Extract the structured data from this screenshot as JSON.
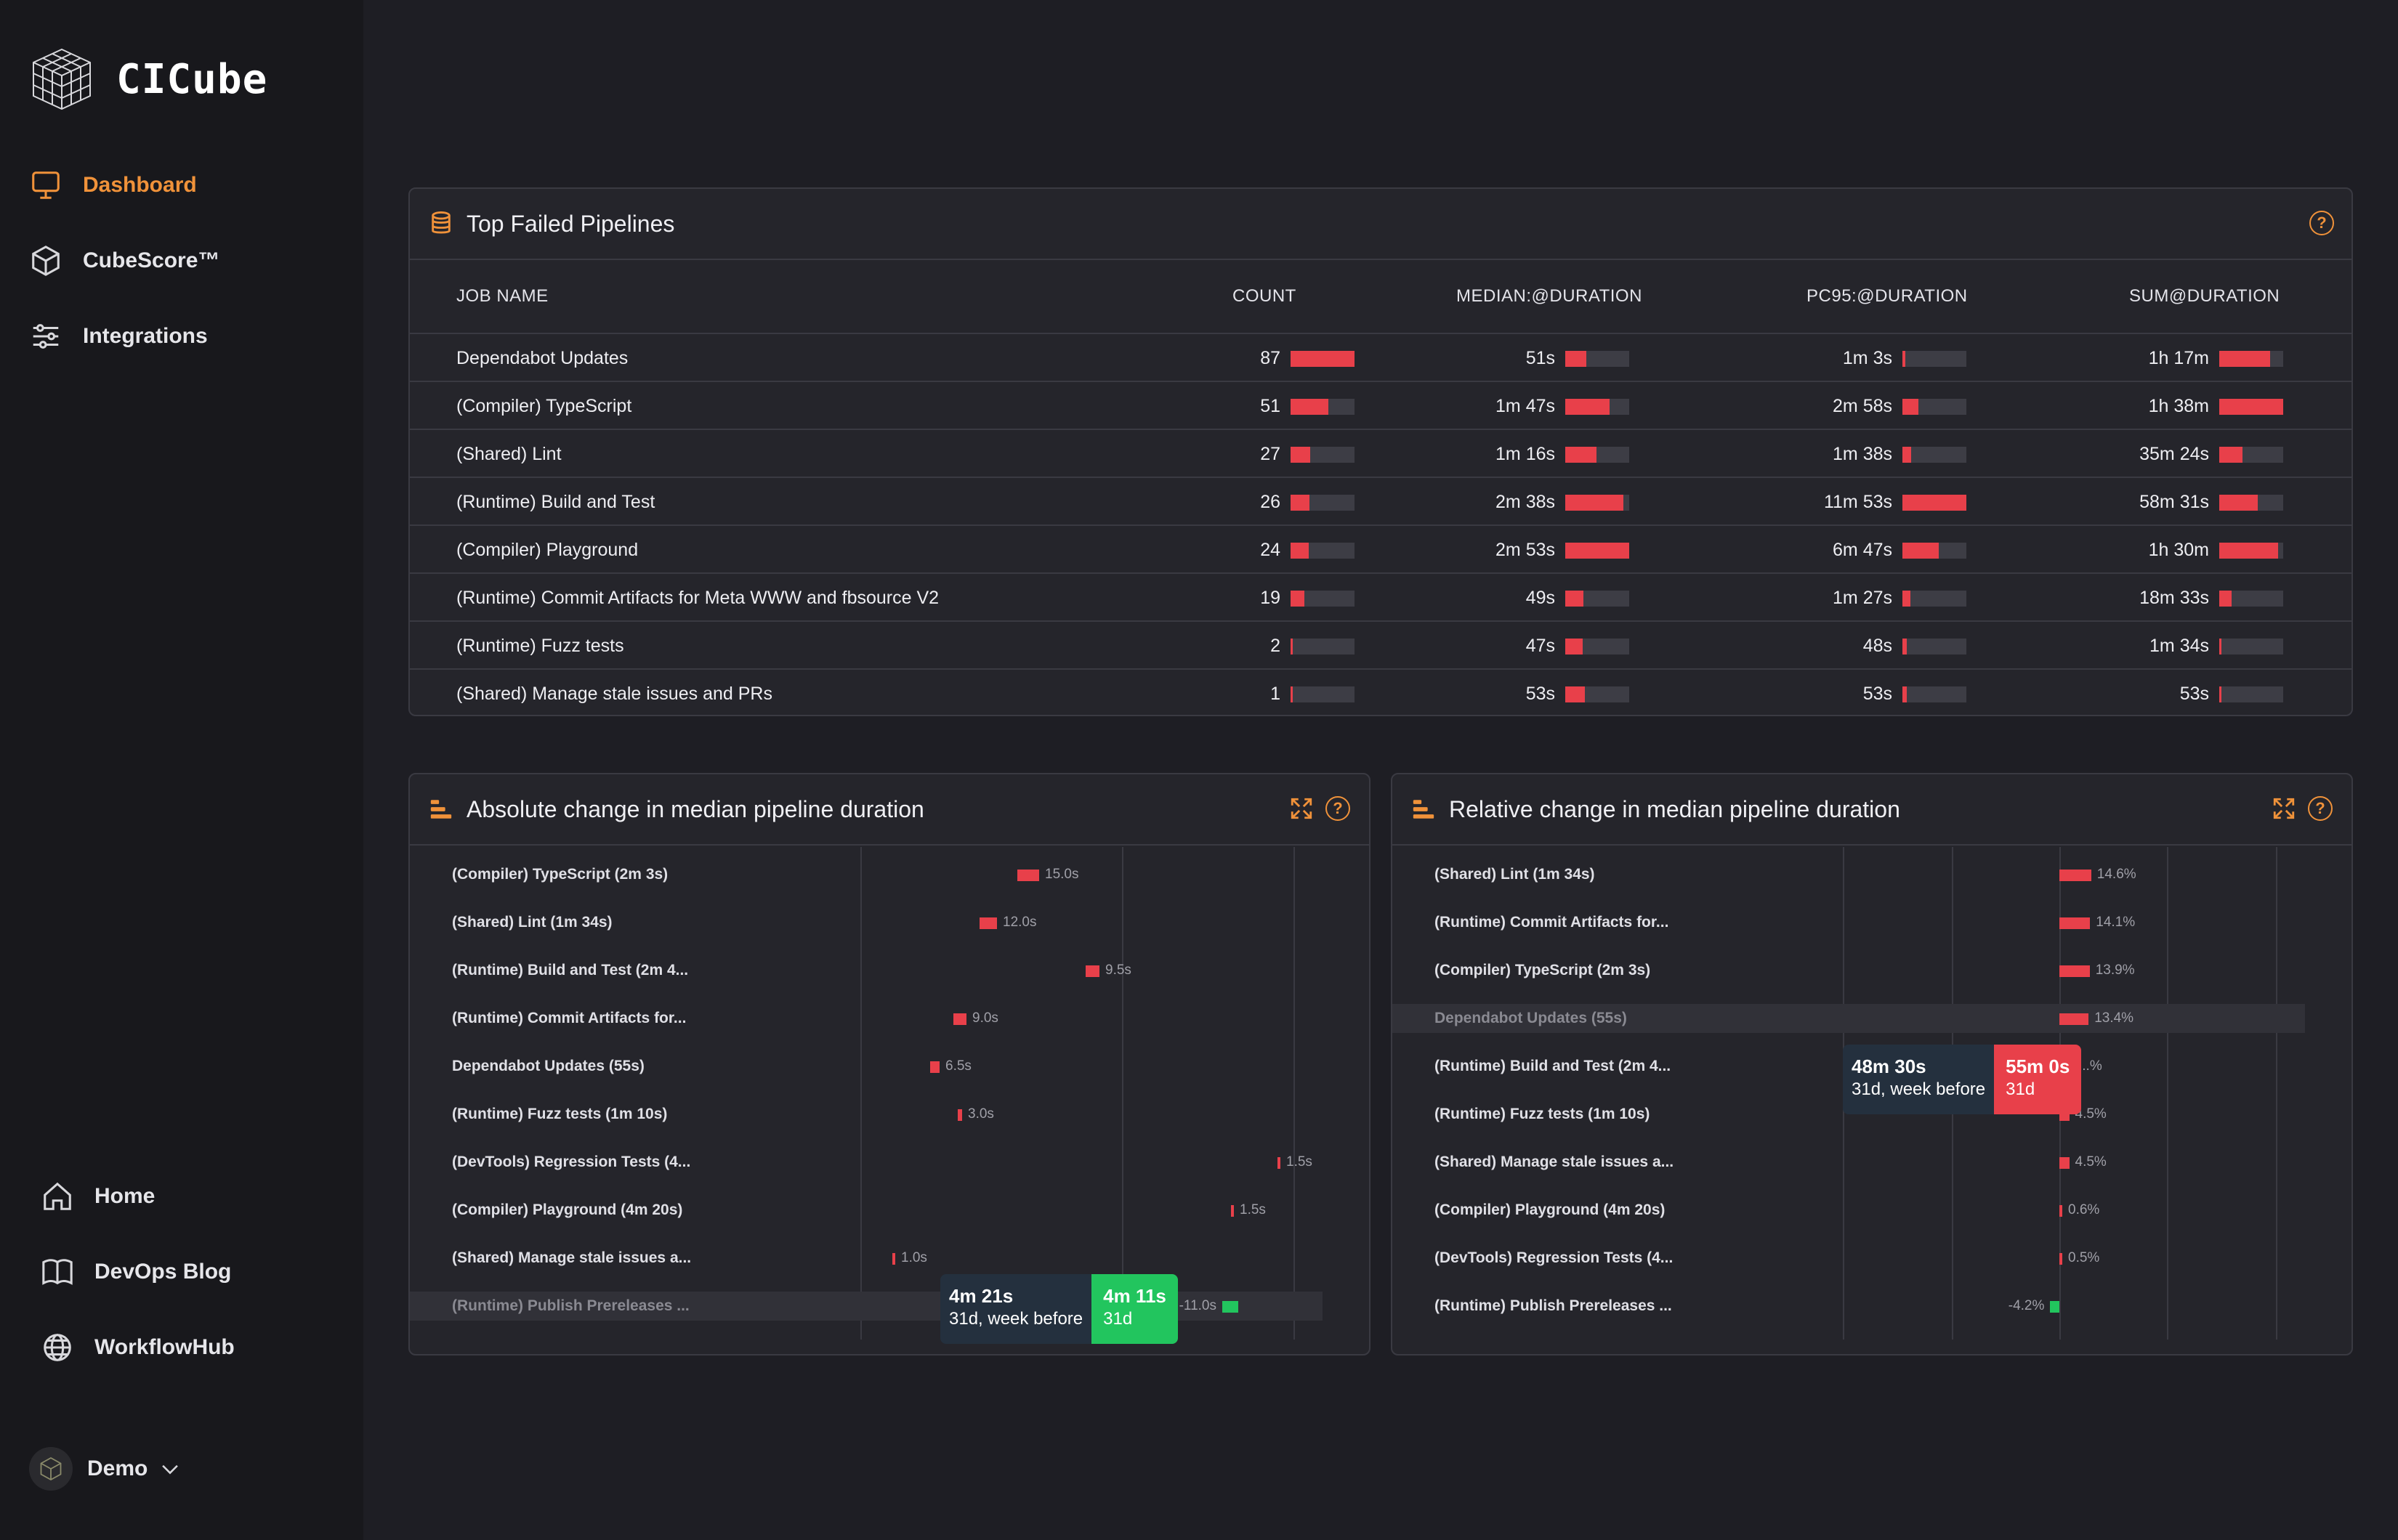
{
  "app": {
    "name": "CICube"
  },
  "nav": {
    "primary": [
      {
        "label": "Dashboard",
        "icon": "monitor-icon",
        "active": true
      },
      {
        "label": "CubeScore™",
        "icon": "cube-icon",
        "active": false
      },
      {
        "label": "Integrations",
        "icon": "sliders-icon",
        "active": false
      }
    ],
    "secondary": [
      {
        "label": "Home",
        "icon": "home-icon"
      },
      {
        "label": "DevOps Blog",
        "icon": "book-icon"
      },
      {
        "label": "WorkflowHub",
        "icon": "globe-icon"
      }
    ],
    "account": {
      "label": "Demo"
    }
  },
  "colors": {
    "accent": "#f0923a",
    "bad": "#e8404a",
    "good": "#22c55e"
  },
  "failed": {
    "title": "Top Failed Pipelines",
    "columns": [
      "JOB NAME",
      "COUNT",
      "MEDIAN:@DURATION",
      "PC95:@DURATION",
      "SUM@DURATION"
    ],
    "rows": [
      {
        "name": "Dependabot Updates",
        "count": "87",
        "median": "51s",
        "pc95": "1m 3s",
        "sum": "1h 17m",
        "f": [
          1.0,
          0.33,
          0.05,
          0.79
        ]
      },
      {
        "name": "(Compiler) TypeScript",
        "count": "51",
        "median": "1m 47s",
        "pc95": "2m 58s",
        "sum": "1h 38m",
        "f": [
          0.59,
          0.69,
          0.25,
          1.0
        ]
      },
      {
        "name": "(Shared) Lint",
        "count": "27",
        "median": "1m 16s",
        "pc95": "1m 38s",
        "sum": "35m 24s",
        "f": [
          0.31,
          0.49,
          0.14,
          0.36
        ]
      },
      {
        "name": "(Runtime) Build and Test",
        "count": "26",
        "median": "2m 38s",
        "pc95": "11m 53s",
        "sum": "58m 31s",
        "f": [
          0.3,
          0.91,
          1.0,
          0.6
        ]
      },
      {
        "name": "(Compiler) Playground",
        "count": "24",
        "median": "2m 53s",
        "pc95": "6m 47s",
        "sum": "1h 30m",
        "f": [
          0.28,
          1.0,
          0.57,
          0.92
        ]
      },
      {
        "name": "(Runtime) Commit Artifacts for Meta WWW and fbsource V2",
        "count": "19",
        "median": "49s",
        "pc95": "1m 27s",
        "sum": "18m 33s",
        "f": [
          0.22,
          0.28,
          0.12,
          0.19
        ]
      },
      {
        "name": "(Runtime) Fuzz tests",
        "count": "2",
        "median": "47s",
        "pc95": "48s",
        "sum": "1m 34s",
        "f": [
          0.02,
          0.27,
          0.07,
          0.02
        ]
      },
      {
        "name": "(Shared) Manage stale issues and PRs",
        "count": "1",
        "median": "53s",
        "pc95": "53s",
        "sum": "53s",
        "f": [
          0.01,
          0.31,
          0.07,
          0.01
        ]
      }
    ]
  },
  "absolute": {
    "title": "Absolute change in median pipeline duration",
    "rows": [
      {
        "label": "(Compiler) TypeScript (2m 3s)",
        "value": "15.0s",
        "v": 15.0
      },
      {
        "label": "(Shared) Lint (1m 34s)",
        "value": "12.0s",
        "v": 12.0
      },
      {
        "label": "(Runtime) Build and Test (2m 4...",
        "value": "9.5s",
        "v": 9.5
      },
      {
        "label": "(Runtime) Commit Artifacts for...",
        "value": "9.0s",
        "v": 9.0
      },
      {
        "label": "Dependabot Updates (55s)",
        "value": "6.5s",
        "v": 6.5
      },
      {
        "label": "(Runtime) Fuzz tests (1m 10s)",
        "value": "3.0s",
        "v": 3.0
      },
      {
        "label": "(DevTools) Regression Tests (4...",
        "value": "1.5s",
        "v": 1.5
      },
      {
        "label": "(Compiler) Playground (4m 20s)",
        "value": "1.5s",
        "v": 1.5
      },
      {
        "label": "(Shared) Manage stale issues a...",
        "value": "1.0s",
        "v": 1.0
      },
      {
        "label": "(Runtime) Publish Prereleases ...",
        "value": "-11.0s",
        "v": -11.0,
        "muted": true
      }
    ],
    "tooltip": {
      "before_value": "4m 21s",
      "before_label": "31d, week before",
      "now_value": "4m 11s",
      "now_label": "31d"
    }
  },
  "relative": {
    "title": "Relative change in median pipeline duration",
    "rows": [
      {
        "label": "(Shared) Lint (1m 34s)",
        "value": "14.6%",
        "v": 14.6
      },
      {
        "label": "(Runtime) Commit Artifacts for...",
        "value": "14.1%",
        "v": 14.1
      },
      {
        "label": "(Compiler) TypeScript (2m 3s)",
        "value": "13.9%",
        "v": 13.9
      },
      {
        "label": "Dependabot Updates (55s)",
        "value": "13.4%",
        "v": 13.4,
        "muted": true
      },
      {
        "label": "(Runtime) Build and Test (2m 4...",
        "value": "...%",
        "v": 6.0
      },
      {
        "label": "(Runtime) Fuzz tests (1m 10s)",
        "value": "4.5%",
        "v": 4.5
      },
      {
        "label": "(Shared) Manage stale issues a...",
        "value": "4.5%",
        "v": 4.5
      },
      {
        "label": "(Compiler) Playground (4m 20s)",
        "value": "0.6%",
        "v": 0.6
      },
      {
        "label": "(DevTools) Regression Tests (4...",
        "value": "0.5%",
        "v": 0.5
      },
      {
        "label": "(Runtime) Publish Prereleases ...",
        "value": "-4.2%",
        "v": -4.2
      }
    ],
    "tooltip": {
      "before_value": "48m 30s",
      "before_label": "31d, week before",
      "now_value": "55m 0s",
      "now_label": "31d"
    }
  }
}
